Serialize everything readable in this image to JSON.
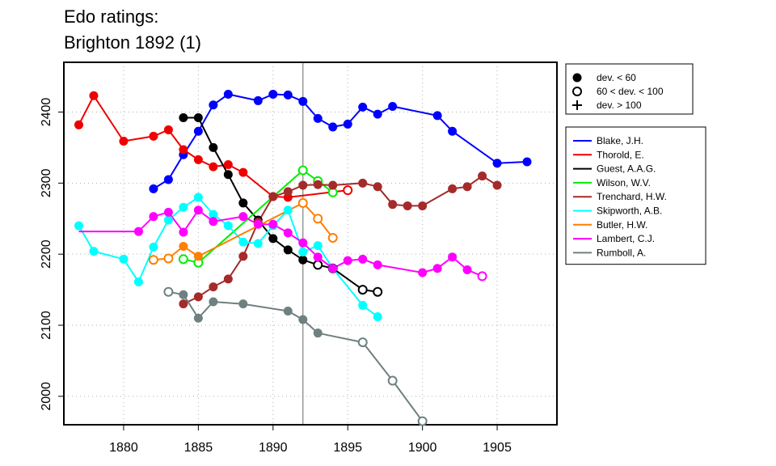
{
  "title": {
    "line1": "Edo ratings:",
    "line2": "Brighton 1892 (1)"
  },
  "chart_data": {
    "type": "line",
    "title": "Edo ratings: Brighton 1892 (1)",
    "xlabel": "",
    "ylabel": "",
    "xlim": [
      1876,
      1909
    ],
    "ylim": [
      1960,
      2470
    ],
    "x_ticks": [
      1880,
      1885,
      1890,
      1895,
      1900,
      1905
    ],
    "y_ticks": [
      2000,
      2100,
      2200,
      2300,
      2400
    ],
    "grid": true,
    "reference_line_x": 1892,
    "marker_legend": [
      {
        "label": "dev. < 60",
        "marker": "filled-circle"
      },
      {
        "label": "60 < dev. < 100",
        "marker": "open-circle"
      },
      {
        "label": "dev. > 100",
        "marker": "plus"
      }
    ],
    "series_legend_position": "right",
    "series": [
      {
        "name": "Blake, J.H.",
        "color": "#0000ff",
        "points": [
          {
            "x": 1882,
            "y": 2292,
            "m": "filled"
          },
          {
            "x": 1883,
            "y": 2305,
            "m": "filled"
          },
          {
            "x": 1884,
            "y": 2340,
            "m": "filled"
          },
          {
            "x": 1885,
            "y": 2373,
            "m": "filled"
          },
          {
            "x": 1886,
            "y": 2410,
            "m": "filled"
          },
          {
            "x": 1887,
            "y": 2425,
            "m": "filled"
          },
          {
            "x": 1889,
            "y": 2416,
            "m": "filled"
          },
          {
            "x": 1890,
            "y": 2425,
            "m": "filled"
          },
          {
            "x": 1891,
            "y": 2424,
            "m": "filled"
          },
          {
            "x": 1892,
            "y": 2415,
            "m": "filled"
          },
          {
            "x": 1893,
            "y": 2391,
            "m": "filled"
          },
          {
            "x": 1894,
            "y": 2379,
            "m": "filled"
          },
          {
            "x": 1895,
            "y": 2383,
            "m": "filled"
          },
          {
            "x": 1896,
            "y": 2407,
            "m": "filled"
          },
          {
            "x": 1897,
            "y": 2397,
            "m": "filled"
          },
          {
            "x": 1898,
            "y": 2408,
            "m": "filled"
          },
          {
            "x": 1901,
            "y": 2395,
            "m": "filled"
          },
          {
            "x": 1902,
            "y": 2373,
            "m": "filled"
          },
          {
            "x": 1905,
            "y": 2328,
            "m": "filled"
          },
          {
            "x": 1907,
            "y": 2330,
            "m": "filled"
          }
        ]
      },
      {
        "name": "Thorold, E.",
        "color": "#ee0000",
        "points": [
          {
            "x": 1877,
            "y": 2382,
            "m": "filled"
          },
          {
            "x": 1878,
            "y": 2423,
            "m": "filled"
          },
          {
            "x": 1880,
            "y": 2359,
            "m": "filled"
          },
          {
            "x": 1882,
            "y": 2366,
            "m": "filled"
          },
          {
            "x": 1883,
            "y": 2375,
            "m": "filled"
          },
          {
            "x": 1884,
            "y": 2347,
            "m": "filled"
          },
          {
            "x": 1885,
            "y": 2333,
            "m": "filled"
          },
          {
            "x": 1886,
            "y": 2323,
            "m": "filled"
          },
          {
            "x": 1887,
            "y": 2326,
            "m": "filled"
          },
          {
            "x": 1888,
            "y": 2315,
            "m": "filled"
          },
          {
            "x": 1890,
            "y": 2281,
            "m": "filled"
          },
          {
            "x": 1891,
            "y": 2280,
            "m": "filled"
          },
          {
            "x": 1895,
            "y": 2290,
            "m": "open"
          }
        ]
      },
      {
        "name": "Guest, A.A.G.",
        "color": "#000000",
        "points": [
          {
            "x": 1884,
            "y": 2392,
            "m": "filled"
          },
          {
            "x": 1885,
            "y": 2392,
            "m": "filled"
          },
          {
            "x": 1886,
            "y": 2350,
            "m": "filled"
          },
          {
            "x": 1887,
            "y": 2312,
            "m": "filled"
          },
          {
            "x": 1888,
            "y": 2272,
            "m": "filled"
          },
          {
            "x": 1889,
            "y": 2248,
            "m": "filled"
          },
          {
            "x": 1890,
            "y": 2222,
            "m": "filled"
          },
          {
            "x": 1891,
            "y": 2206,
            "m": "filled"
          },
          {
            "x": 1892,
            "y": 2192,
            "m": "filled"
          },
          {
            "x": 1893,
            "y": 2185,
            "m": "open"
          },
          {
            "x": 1894,
            "y": 2180,
            "m": "open"
          },
          {
            "x": 1896,
            "y": 2150,
            "m": "open"
          },
          {
            "x": 1897,
            "y": 2147,
            "m": "open"
          }
        ]
      },
      {
        "name": "Wilson, W.V.",
        "color": "#00ee00",
        "points": [
          {
            "x": 1884,
            "y": 2193,
            "m": "open"
          },
          {
            "x": 1885,
            "y": 2188,
            "m": "open"
          },
          {
            "x": 1892,
            "y": 2318,
            "m": "open"
          },
          {
            "x": 1893,
            "y": 2303,
            "m": "open"
          },
          {
            "x": 1894,
            "y": 2287,
            "m": "open"
          }
        ]
      },
      {
        "name": "Trenchard, H.W.",
        "color": "#a52a2a",
        "points": [
          {
            "x": 1884,
            "y": 2130,
            "m": "filled"
          },
          {
            "x": 1885,
            "y": 2140,
            "m": "filled"
          },
          {
            "x": 1886,
            "y": 2154,
            "m": "filled"
          },
          {
            "x": 1887,
            "y": 2165,
            "m": "filled"
          },
          {
            "x": 1888,
            "y": 2197,
            "m": "filled"
          },
          {
            "x": 1889,
            "y": 2245,
            "m": "filled"
          },
          {
            "x": 1890,
            "y": 2281,
            "m": "filled"
          },
          {
            "x": 1891,
            "y": 2288,
            "m": "filled"
          },
          {
            "x": 1892,
            "y": 2297,
            "m": "filled"
          },
          {
            "x": 1893,
            "y": 2298,
            "m": "filled"
          },
          {
            "x": 1894,
            "y": 2297,
            "m": "filled"
          },
          {
            "x": 1896,
            "y": 2300,
            "m": "filled"
          },
          {
            "x": 1897,
            "y": 2295,
            "m": "filled"
          },
          {
            "x": 1898,
            "y": 2270,
            "m": "filled"
          },
          {
            "x": 1899,
            "y": 2268,
            "m": "filled"
          },
          {
            "x": 1900,
            "y": 2268,
            "m": "filled"
          },
          {
            "x": 1902,
            "y": 2292,
            "m": "filled"
          },
          {
            "x": 1903,
            "y": 2295,
            "m": "filled"
          },
          {
            "x": 1904,
            "y": 2310,
            "m": "filled"
          },
          {
            "x": 1905,
            "y": 2297,
            "m": "filled"
          }
        ]
      },
      {
        "name": "Skipworth, A.B.",
        "color": "#00ffff",
        "points": [
          {
            "x": 1877,
            "y": 2240,
            "m": "filled"
          },
          {
            "x": 1878,
            "y": 2204,
            "m": "filled"
          },
          {
            "x": 1880,
            "y": 2193,
            "m": "filled"
          },
          {
            "x": 1881,
            "y": 2161,
            "m": "filled"
          },
          {
            "x": 1882,
            "y": 2210,
            "m": "filled"
          },
          {
            "x": 1883,
            "y": 2248,
            "m": "filled"
          },
          {
            "x": 1884,
            "y": 2266,
            "m": "filled"
          },
          {
            "x": 1885,
            "y": 2280,
            "m": "filled"
          },
          {
            "x": 1886,
            "y": 2256,
            "m": "filled"
          },
          {
            "x": 1887,
            "y": 2240,
            "m": "filled"
          },
          {
            "x": 1888,
            "y": 2217,
            "m": "filled"
          },
          {
            "x": 1889,
            "y": 2215,
            "m": "filled"
          },
          {
            "x": 1890,
            "y": 2240,
            "m": "filled"
          },
          {
            "x": 1891,
            "y": 2262,
            "m": "filled"
          },
          {
            "x": 1892,
            "y": 2203,
            "m": "filled"
          },
          {
            "x": 1893,
            "y": 2212,
            "m": "filled"
          },
          {
            "x": 1894,
            "y": 2180,
            "m": "filled"
          },
          {
            "x": 1896,
            "y": 2128,
            "m": "filled"
          },
          {
            "x": 1897,
            "y": 2112,
            "m": "filled"
          }
        ]
      },
      {
        "name": "Butler, H.W.",
        "color": "#ff7f00",
        "points": [
          {
            "x": 1882,
            "y": 2192,
            "m": "open"
          },
          {
            "x": 1883,
            "y": 2194,
            "m": "open"
          },
          {
            "x": 1884,
            "y": 2211,
            "m": "filled"
          },
          {
            "x": 1885,
            "y": 2197,
            "m": "filled"
          },
          {
            "x": 1892,
            "y": 2272,
            "m": "open"
          },
          {
            "x": 1893,
            "y": 2250,
            "m": "open"
          },
          {
            "x": 1894,
            "y": 2223,
            "m": "open"
          }
        ]
      },
      {
        "name": "Lambert, C.J.",
        "color": "#ff00ff",
        "points": [
          {
            "x": 1877,
            "y": 2232,
            "m": "none"
          },
          {
            "x": 1881,
            "y": 2232,
            "m": "filled"
          },
          {
            "x": 1882,
            "y": 2253,
            "m": "filled"
          },
          {
            "x": 1883,
            "y": 2259,
            "m": "filled"
          },
          {
            "x": 1884,
            "y": 2231,
            "m": "filled"
          },
          {
            "x": 1885,
            "y": 2262,
            "m": "filled"
          },
          {
            "x": 1886,
            "y": 2246,
            "m": "filled"
          },
          {
            "x": 1888,
            "y": 2253,
            "m": "filled"
          },
          {
            "x": 1889,
            "y": 2242,
            "m": "filled"
          },
          {
            "x": 1890,
            "y": 2242,
            "m": "filled"
          },
          {
            "x": 1891,
            "y": 2230,
            "m": "filled"
          },
          {
            "x": 1892,
            "y": 2216,
            "m": "filled"
          },
          {
            "x": 1893,
            "y": 2196,
            "m": "filled"
          },
          {
            "x": 1894,
            "y": 2180,
            "m": "filled"
          },
          {
            "x": 1895,
            "y": 2191,
            "m": "filled"
          },
          {
            "x": 1896,
            "y": 2193,
            "m": "filled"
          },
          {
            "x": 1897,
            "y": 2185,
            "m": "filled"
          },
          {
            "x": 1900,
            "y": 2174,
            "m": "filled"
          },
          {
            "x": 1901,
            "y": 2180,
            "m": "filled"
          },
          {
            "x": 1902,
            "y": 2196,
            "m": "filled"
          },
          {
            "x": 1903,
            "y": 2178,
            "m": "filled"
          },
          {
            "x": 1904,
            "y": 2169,
            "m": "open"
          }
        ]
      },
      {
        "name": "Rumboll, A.",
        "color": "#6f8080",
        "points": [
          {
            "x": 1883,
            "y": 2147,
            "m": "open"
          },
          {
            "x": 1884,
            "y": 2143,
            "m": "filled"
          },
          {
            "x": 1885,
            "y": 2110,
            "m": "filled"
          },
          {
            "x": 1886,
            "y": 2133,
            "m": "filled"
          },
          {
            "x": 1888,
            "y": 2130,
            "m": "filled"
          },
          {
            "x": 1891,
            "y": 2120,
            "m": "filled"
          },
          {
            "x": 1892,
            "y": 2108,
            "m": "filled"
          },
          {
            "x": 1893,
            "y": 2089,
            "m": "filled"
          },
          {
            "x": 1896,
            "y": 2076,
            "m": "open"
          },
          {
            "x": 1898,
            "y": 2022,
            "m": "open"
          },
          {
            "x": 1900,
            "y": 1965,
            "m": "open"
          }
        ]
      }
    ]
  }
}
